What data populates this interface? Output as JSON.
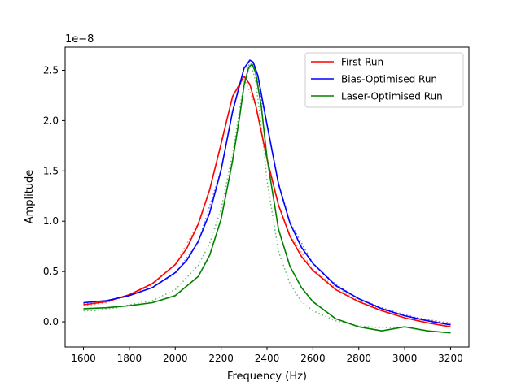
{
  "chart_data": {
    "type": "line",
    "title": "",
    "xlabel": "Frequency (Hz)",
    "ylabel": "Amplitude",
    "offset_label": "1e−8",
    "xlim": [
      1520,
      3280
    ],
    "ylim": [
      -0.25,
      2.73
    ],
    "x_ticks": [
      1600,
      1800,
      2000,
      2200,
      2400,
      2600,
      2800,
      3000,
      3200
    ],
    "y_ticks": [
      0.0,
      0.5,
      1.0,
      1.5,
      2.0,
      2.5
    ],
    "y_tick_labels": [
      "0.0",
      "0.5",
      "1.0",
      "1.5",
      "2.0",
      "2.5"
    ],
    "legend_position": "top-right",
    "series": [
      {
        "name": "First Run",
        "color": "#ff0000",
        "style": "solid",
        "x": [
          1600,
          1700,
          1800,
          1900,
          2000,
          2050,
          2100,
          2150,
          2200,
          2250,
          2300,
          2325,
          2350,
          2400,
          2450,
          2500,
          2550,
          2600,
          2700,
          2800,
          2900,
          3000,
          3100,
          3200
        ],
        "values": [
          0.17,
          0.2,
          0.27,
          0.38,
          0.57,
          0.73,
          0.97,
          1.31,
          1.77,
          2.24,
          2.44,
          2.36,
          2.16,
          1.62,
          1.16,
          0.85,
          0.65,
          0.51,
          0.32,
          0.2,
          0.11,
          0.04,
          -0.01,
          -0.05
        ]
      },
      {
        "name": "Bias-Optimised Run",
        "color": "#0000ff",
        "style": "solid",
        "x": [
          1600,
          1700,
          1800,
          1900,
          2000,
          2050,
          2100,
          2150,
          2200,
          2250,
          2300,
          2325,
          2340,
          2360,
          2400,
          2450,
          2500,
          2550,
          2600,
          2700,
          2800,
          2900,
          3000,
          3100,
          3200
        ],
        "values": [
          0.19,
          0.21,
          0.26,
          0.34,
          0.49,
          0.61,
          0.8,
          1.08,
          1.51,
          2.09,
          2.52,
          2.6,
          2.58,
          2.45,
          1.96,
          1.37,
          0.98,
          0.74,
          0.58,
          0.36,
          0.23,
          0.13,
          0.06,
          0.01,
          -0.03
        ]
      },
      {
        "name": "Laser-Optimised Run",
        "color": "#008000",
        "style": "solid",
        "x": [
          1600,
          1700,
          1800,
          1900,
          2000,
          2100,
          2150,
          2200,
          2250,
          2280,
          2300,
          2320,
          2335,
          2350,
          2375,
          2400,
          2450,
          2500,
          2550,
          2600,
          2700,
          2800,
          2900,
          3000,
          3100,
          3200
        ],
        "values": [
          0.13,
          0.14,
          0.16,
          0.19,
          0.26,
          0.45,
          0.66,
          1.02,
          1.6,
          2.03,
          2.35,
          2.53,
          2.56,
          2.48,
          2.14,
          1.63,
          0.92,
          0.55,
          0.34,
          0.2,
          0.03,
          -0.05,
          -0.09,
          -0.05,
          -0.09,
          -0.11
        ]
      },
      {
        "name": "",
        "color": "#ff6a4d",
        "style": "dotted",
        "x": [
          1600,
          1700,
          1800,
          1900,
          2000,
          2100,
          2150,
          2200,
          2250,
          2300,
          2350,
          2400,
          2450,
          2500,
          2600,
          2700,
          2800,
          2900,
          3000,
          3100,
          3200
        ],
        "values": [
          0.16,
          0.19,
          0.26,
          0.37,
          0.57,
          0.98,
          1.31,
          1.78,
          2.24,
          2.42,
          2.15,
          1.62,
          1.16,
          0.86,
          0.52,
          0.34,
          0.21,
          0.12,
          0.06,
          0.02,
          -0.01
        ]
      },
      {
        "name": "",
        "color": "#5555ff",
        "style": "dotted",
        "x": [
          1600,
          1700,
          1800,
          1900,
          2000,
          2100,
          2200,
          2250,
          2300,
          2340,
          2400,
          2450,
          2500,
          2600,
          2700,
          2800,
          2900,
          3000,
          3100,
          3200
        ],
        "values": [
          0.18,
          0.21,
          0.26,
          0.34,
          0.48,
          0.79,
          1.51,
          2.08,
          2.52,
          2.58,
          1.96,
          1.38,
          0.99,
          0.58,
          0.37,
          0.23,
          0.14,
          0.07,
          0.02,
          -0.02
        ]
      },
      {
        "name": "",
        "color": "#4caf50",
        "style": "dotted",
        "x": [
          1600,
          1650,
          1700,
          1750,
          1800,
          1900,
          2000,
          2100,
          2150,
          2200,
          2250,
          2300,
          2330,
          2350,
          2380,
          2400,
          2450,
          2500,
          2550,
          2600,
          2700,
          2800,
          2900,
          3000
        ],
        "values": [
          0.11,
          0.11,
          0.13,
          0.14,
          0.17,
          0.21,
          0.32,
          0.56,
          0.78,
          1.12,
          1.67,
          2.38,
          2.56,
          2.4,
          1.85,
          1.4,
          0.7,
          0.38,
          0.2,
          0.11,
          0.01,
          -0.04,
          -0.06,
          -0.05
        ]
      }
    ]
  }
}
